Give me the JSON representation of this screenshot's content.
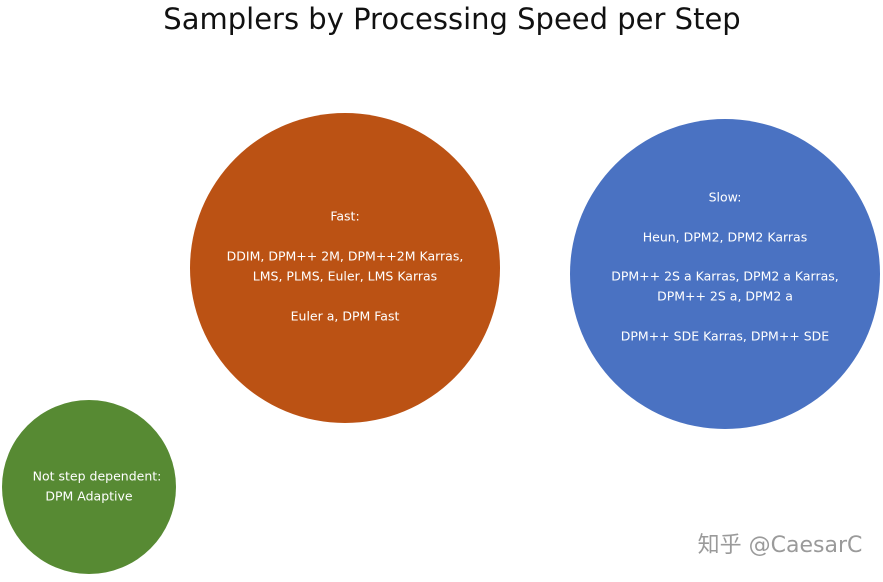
{
  "title": "Samplers by Processing Speed per Step",
  "nodes": [
    {
      "lines": [
        "Fast:",
        "DDIM, DPM++ 2M, DPM++2M Karras,",
        "LMS, PLMS, Euler, LMS Karras",
        "Euler a, DPM Fast"
      ]
    },
    {
      "lines": [
        "Slow:",
        "Heun, DPM2, DPM2 Karras",
        "DPM++ 2S a Karras, DPM2 a Karras,",
        "DPM++ 2S a, DPM2 a",
        "DPM++ SDE Karras, DPM++ SDE"
      ]
    },
    {
      "lines": [
        "Not step dependent:",
        "DPM Adaptive"
      ]
    }
  ],
  "watermark": "知乎 @CaesarC"
}
